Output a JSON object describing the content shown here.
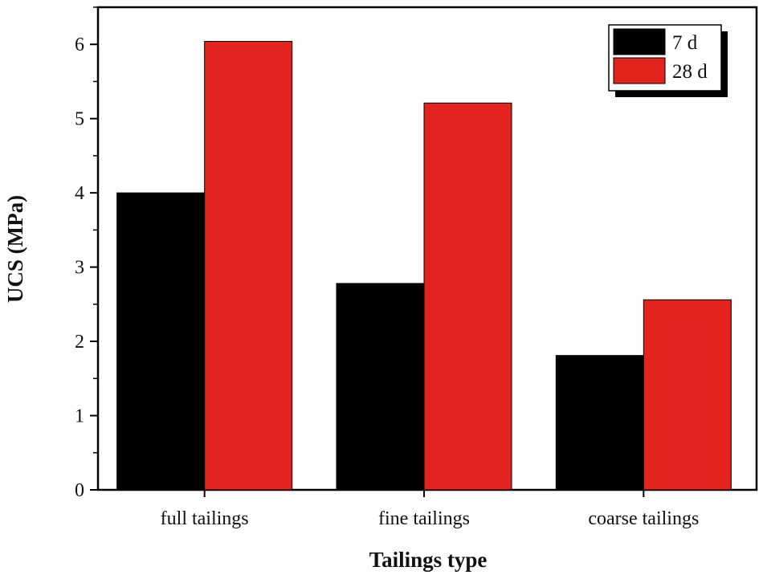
{
  "chart_data": {
    "type": "bar",
    "title": "",
    "xlabel": "Tailings type",
    "ylabel": "UCS (MPa)",
    "categories": [
      "full tailings",
      "fine tailings",
      "coarse tailings"
    ],
    "series": [
      {
        "name": "7 d",
        "values": [
          4.0,
          2.78,
          1.81
        ],
        "color": "#000000"
      },
      {
        "name": "28 d",
        "values": [
          6.04,
          5.21,
          2.56
        ],
        "color": "#e3241e"
      }
    ],
    "ylim": [
      0,
      6.5
    ],
    "yticks": [
      "0",
      "1",
      "2",
      "3",
      "4",
      "5",
      "6"
    ],
    "grid": false,
    "legend_position": "top-right"
  }
}
